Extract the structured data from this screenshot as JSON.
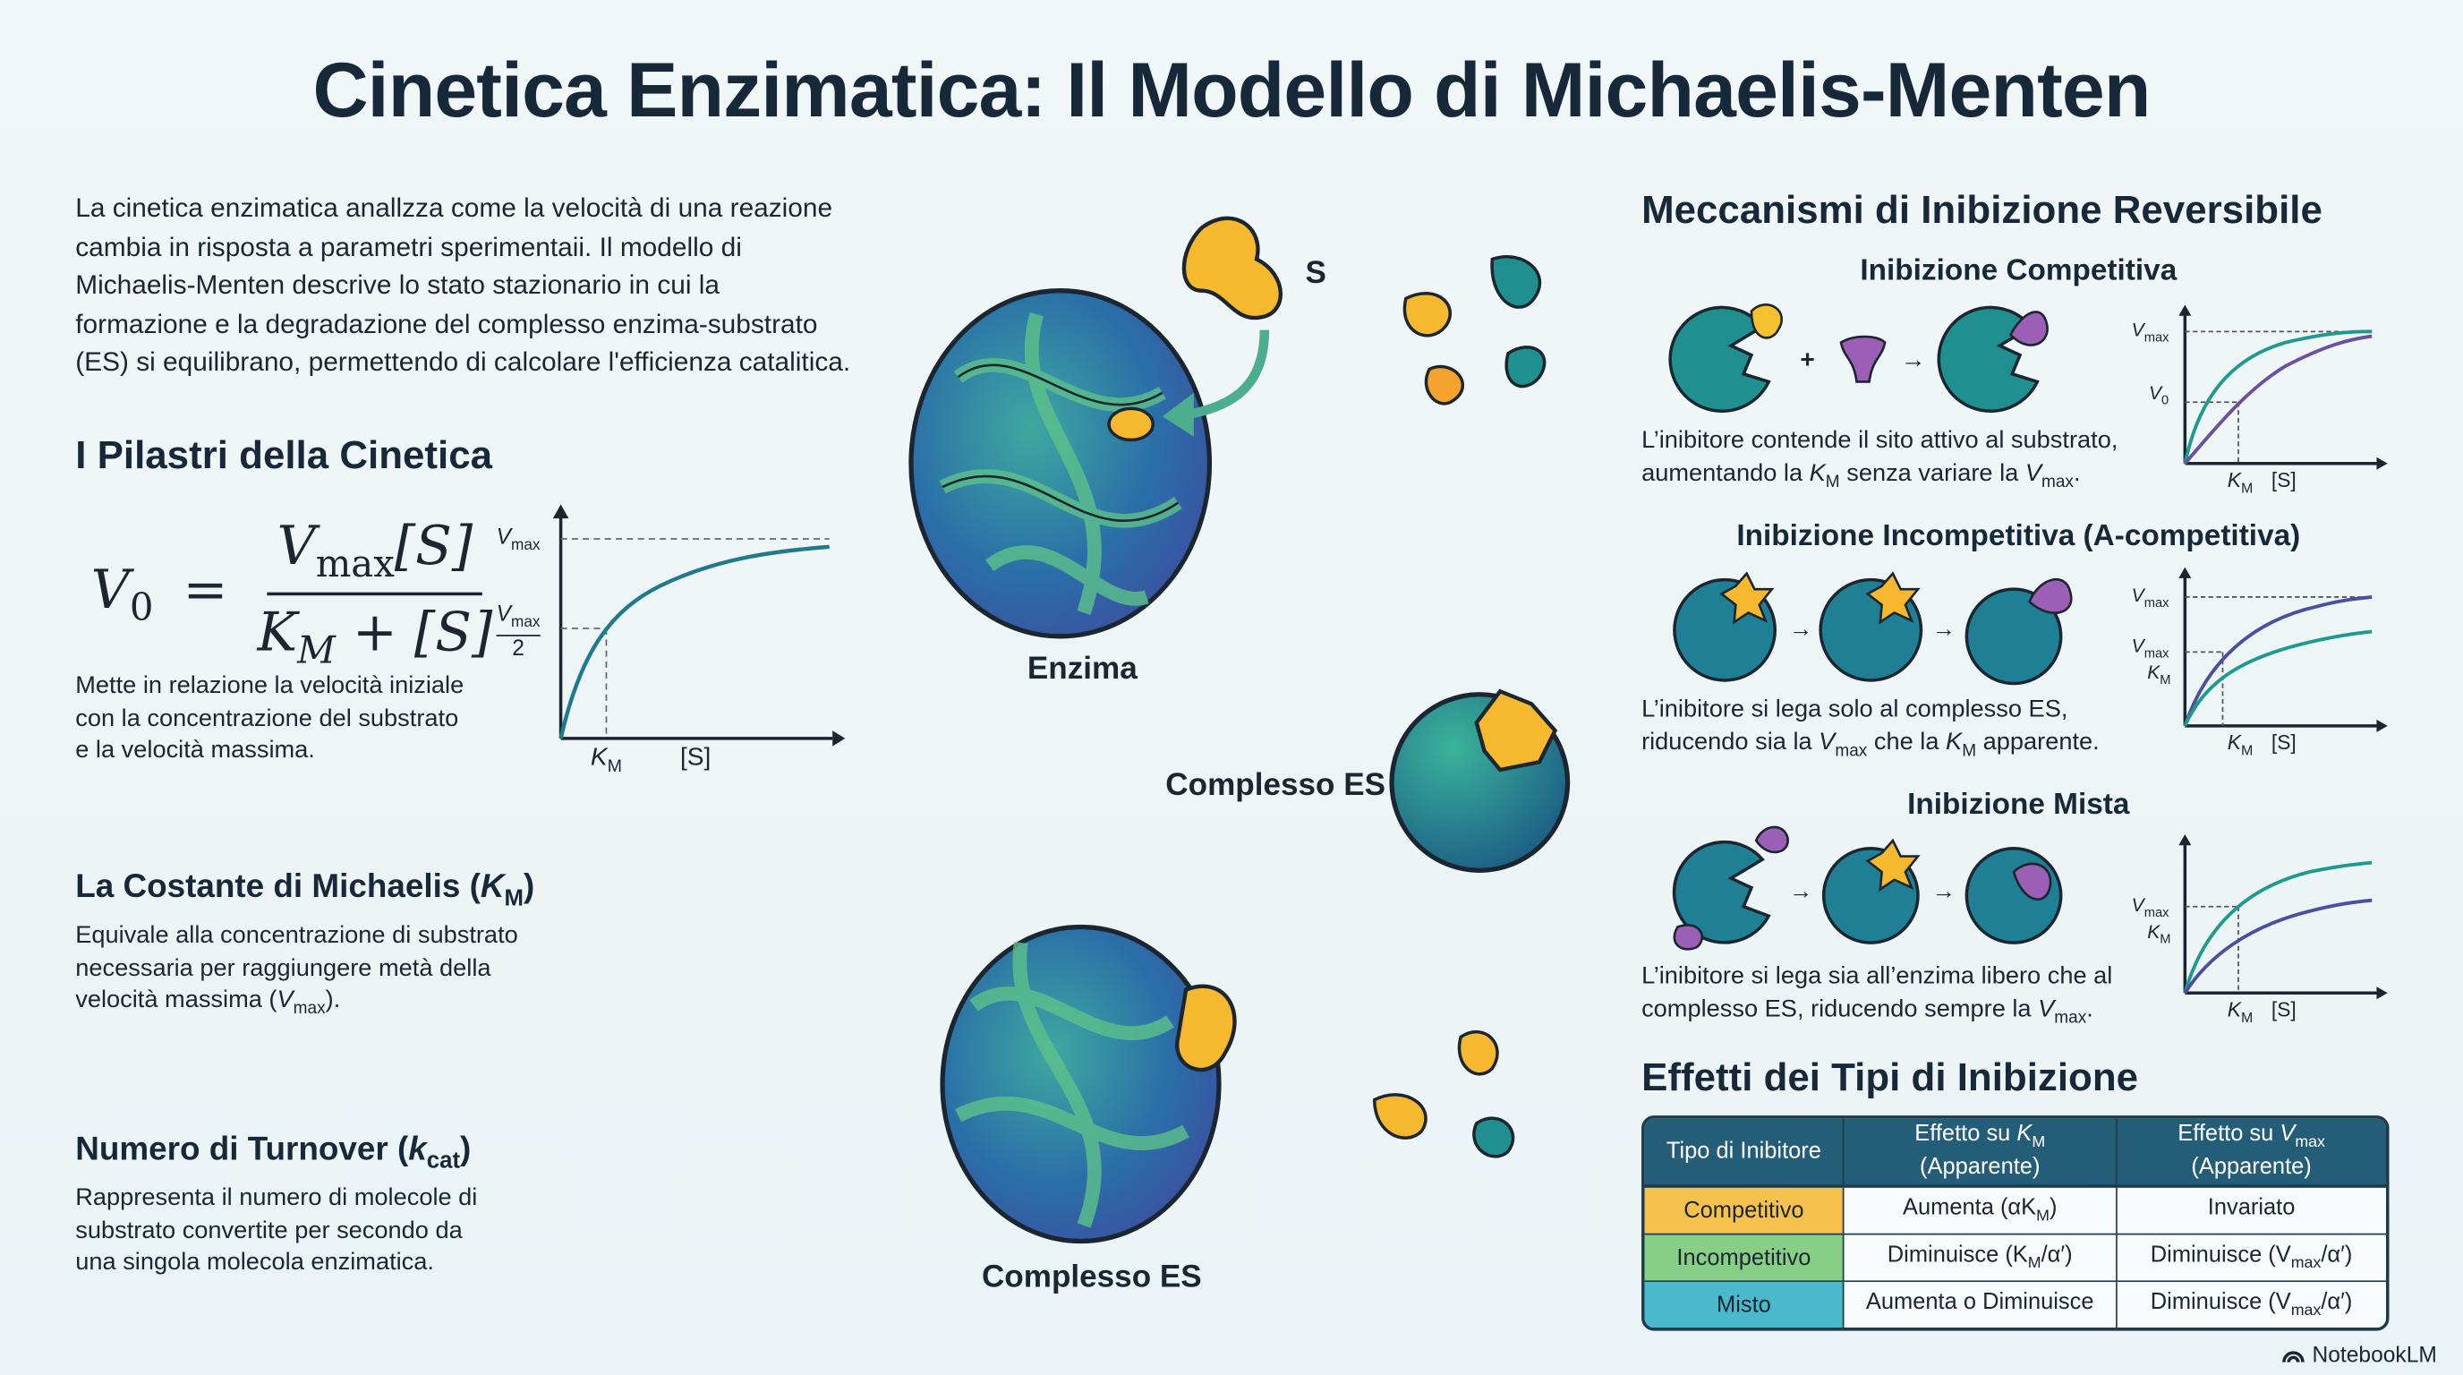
{
  "title": "Cinetica Enzimatica: Il Modello di Michaelis-Menten",
  "intro": [
    "La cinetica enzimatica anallzza come la velocità di una reazione",
    "cambia in risposta a parametri sperimentaii. Il modello di",
    "Michaelis-Menten descrive lo stato stazionario in cui la",
    "formazione e la degradazione del complesso enzima-substrato",
    "(ES) si equilibrano, permettendo di calcolare l'efficienza catalitica."
  ],
  "pillars": {
    "heading": "I Pilastri della Cinetica",
    "formula": {
      "lhs": "V",
      "lhs_sub": "0",
      "eq": "=",
      "num_v": "V",
      "num_sub": "max",
      "num_s": "[S]",
      "den_k": "K",
      "den_sub": "M",
      "den_rest": "+ [S]"
    },
    "graph": {
      "vmax": "V",
      "vmax_sub": "max",
      "half_num_v": "V",
      "half_num_sub": "max",
      "half_den": "2",
      "km": "K",
      "km_sub": "M",
      "s": "[S]"
    },
    "caption": [
      "Mette in relazione la velocità iniziale",
      "con la concentrazione del substrato",
      "e la velocità massima."
    ]
  },
  "km_section": {
    "heading": "La Costante di Michaelis (",
    "heading_k": "K",
    "heading_sub": "M",
    "heading_end": ")",
    "lines": [
      "Equivale alla concentrazione di substrato",
      "necessaria per raggiungere metà della"
    ],
    "line3": "velocità massima (",
    "line3_v": "V",
    "line3_sub": "max",
    "line3_end": ")."
  },
  "kcat_section": {
    "heading": "Numero di Turnover (",
    "heading_k": "k",
    "heading_sub": "cat",
    "heading_end": ")",
    "lines": [
      "Rappresenta il numero di molecole di",
      "substrato convertite per secondo da",
      "una singola molecola enzimatica."
    ]
  },
  "center": {
    "substrate_label": "S",
    "enzyme_label": "Enzima",
    "complex_label_1": "Complesso ES",
    "complex_label_2": "Complesso ES"
  },
  "inhibition": {
    "heading": "Meccanismi di Inibizione Reversibile",
    "competitive": {
      "title": "Inibizione Competitiva",
      "plus": "+",
      "arrow": "→",
      "line1": "L’inibitore contende il sito attivo al substrato,",
      "l2a": "aumentando la ",
      "l2k": "K",
      "l2ks": "M",
      "l2b": " senza variare la ",
      "l2v": "V",
      "l2vs": "max",
      "l2c": ".",
      "y1": "V",
      "y1s": "max",
      "y2": "V",
      "y2s": "0",
      "x1": "K",
      "x1s": "M",
      "x2": "[S]"
    },
    "uncompetitive": {
      "title": "Inibizione Incompetitiva (A-competitiva)",
      "arrow": "→",
      "line1": "L’inibitore si lega solo al complesso ES,",
      "l2a": "riducendo sia la ",
      "l2v": "V",
      "l2vs": "max",
      "l2b": " che la ",
      "l2k": "K",
      "l2ks": "M",
      "l2c": " apparente.",
      "y1": "V",
      "y1s": "max",
      "y2": "V",
      "y2s": "max",
      "y3": "K",
      "y3s": "M",
      "x1": "K",
      "x1s": "M",
      "x2": "[S]"
    },
    "mixed": {
      "title": "Inibizione Mista",
      "arrow": "→",
      "line1": "L’inibitore si lega sia all’enzima libero che al",
      "l2a": "complesso ES, riducendo sempre la ",
      "l2v": "V",
      "l2vs": "max",
      "l2c": ".",
      "y1": "V",
      "y1s": "max",
      "y2": "K",
      "y2s": "M",
      "x1": "K",
      "x1s": "M",
      "x2": "[S]"
    }
  },
  "effects": {
    "heading": "Effetti dei Tipi di Inibizione",
    "headers": {
      "c1": "Tipo di Inibitore",
      "c2a": "Effetto su ",
      "c2k": "K",
      "c2ks": "M",
      "c2b": "(Apparente)",
      "c3a": "Effetto su ",
      "c3v": "V",
      "c3vs": "max",
      "c3b": "(Apparente)"
    },
    "rows": [
      {
        "type": "Competitivo",
        "km": "Aumenta (αK",
        "km_sub": "M",
        "km_end": ")",
        "vmax": "Invariato",
        "vmax_sub": "",
        "vmax_end": ""
      },
      {
        "type": "Incompetitivo",
        "km": "Diminuisce (K",
        "km_sub": "M",
        "km_end": "/α′)",
        "vmax": "Diminuisce (V",
        "vmax_sub": "max",
        "vmax_end": "/α′)"
      },
      {
        "type": "Misto",
        "km": "Aumenta o Diminuisce",
        "km_sub": "",
        "km_end": "",
        "vmax": "Diminuisce (V",
        "vmax_sub": "max",
        "vmax_end": "/α′)"
      }
    ],
    "row_colors": [
      "#f4c24d",
      "#87cf86",
      "#49b9cb"
    ]
  },
  "footer": {
    "brand": "NotebookLM"
  },
  "colors": {
    "teal": "#1f8f8f",
    "purple": "#6b4fa0",
    "yellow": "#f5b82e",
    "navy": "#245d77"
  }
}
